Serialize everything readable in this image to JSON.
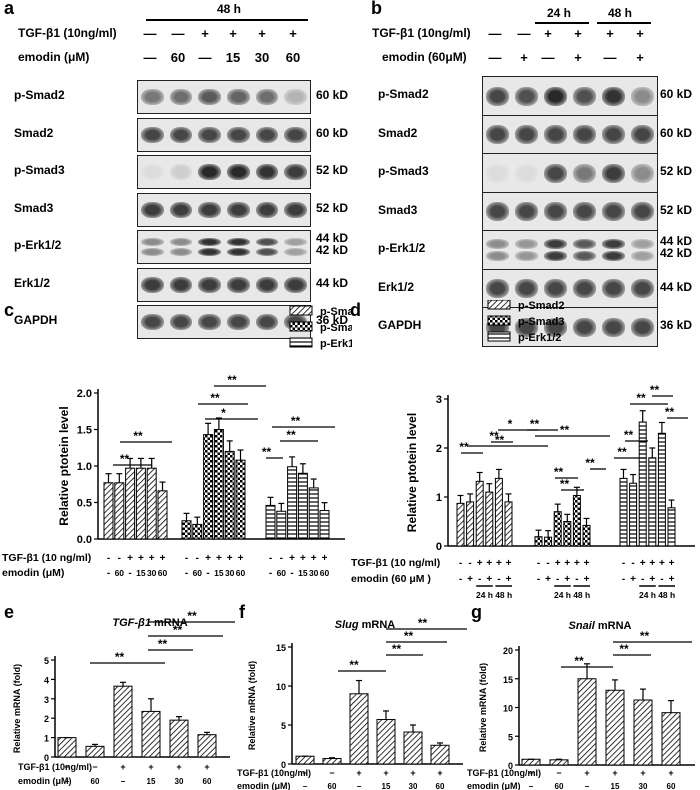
{
  "panel_a": {
    "letter": "a",
    "time": "48 h",
    "row_labels": [
      "TGF-β1 (10ng/ml)",
      "emodin (μM)"
    ],
    "tgf_signs": [
      "—",
      "—",
      "+",
      "+",
      "+",
      "+"
    ],
    "emodin_vals": [
      "—",
      "60",
      "—",
      "15",
      "30",
      "60"
    ],
    "blots": [
      {
        "label": "p-Smad2",
        "kd": "60 kD"
      },
      {
        "label": "Smad2",
        "kd": "60 kD"
      },
      {
        "label": "p-Smad3",
        "kd": "52 kD"
      },
      {
        "label": "Smad3",
        "kd": "52 kD"
      },
      {
        "label": "p-Erk1/2",
        "kd": "44 kD",
        "kd2": "42 kD"
      },
      {
        "label": "Erk1/2",
        "kd": "44 kD"
      },
      {
        "label": "GAPDH",
        "kd": "36 kD"
      }
    ]
  },
  "panel_b": {
    "letter": "b",
    "time1": "24 h",
    "time2": "48 h",
    "row_labels": [
      "TGF-β1 (10ng/ml)",
      "emodin (60μM)"
    ],
    "tgf_signs": [
      "—",
      "—",
      "+",
      "+",
      "+",
      "+"
    ],
    "emodin_signs": [
      "—",
      "+",
      "—",
      "+",
      "—",
      "+"
    ],
    "blots": [
      {
        "label": "p-Smad2",
        "kd": "60 kD"
      },
      {
        "label": "Smad2",
        "kd": "60 kD"
      },
      {
        "label": "p-Smad3",
        "kd": "52 kD"
      },
      {
        "label": "Smad3",
        "kd": "52 kD"
      },
      {
        "label": "p-Erk1/2",
        "kd": "44 kD",
        "kd2": "42 kD"
      },
      {
        "label": "Erk1/2",
        "kd": "44 kD"
      },
      {
        "label": "GAPDH",
        "kd": "36 kD"
      }
    ]
  },
  "chart_data": [
    {
      "id": "c",
      "type": "bar",
      "ylabel": "Relative ptotein level",
      "ylim": [
        0,
        2
      ],
      "yticks": [
        "0.0",
        "0.5",
        "1.0",
        "1.5",
        "2.0"
      ],
      "series": [
        {
          "name": "p-Smad2",
          "values": [
            0.77,
            0.77,
            0.97,
            0.97,
            0.97,
            0.66
          ]
        },
        {
          "name": "p-Smad3",
          "values": [
            0.25,
            0.2,
            1.43,
            1.5,
            1.2,
            1.08
          ]
        },
        {
          "name": "p-Erk1/2",
          "values": [
            0.46,
            0.38,
            0.99,
            0.9,
            0.7,
            0.39
          ]
        }
      ],
      "row1_label": "TGF-β1 (10 ng/ml)",
      "row2_label": "emodin (μM)",
      "tgf": [
        "-",
        "-",
        "+",
        "+",
        "+",
        "+"
      ],
      "emodin": [
        "-",
        "60",
        "-",
        "15",
        "30",
        "60"
      ],
      "sig": [
        "**",
        "**",
        "**",
        "*",
        "**",
        "**",
        "**",
        "**"
      ]
    },
    {
      "id": "d",
      "type": "bar",
      "ylabel": "Relative ptotein level",
      "ylim": [
        0,
        3
      ],
      "yticks": [
        "0",
        "1",
        "2",
        "3"
      ],
      "series": [
        {
          "name": "p-Smad2",
          "values": [
            0.87,
            0.9,
            1.32,
            1.1,
            1.38,
            0.9
          ]
        },
        {
          "name": "p-Smad3",
          "values": [
            0.19,
            0.18,
            0.7,
            0.5,
            1.03,
            0.42
          ]
        },
        {
          "name": "p-Erk1/2",
          "values": [
            1.38,
            1.28,
            2.53,
            1.8,
            2.3,
            0.78
          ]
        }
      ],
      "row1_label": "TGF-β1 (10 ng/ml)",
      "row2_label": "emodin (60 μM )",
      "tgf": [
        "-",
        "-",
        "+",
        "+",
        "+",
        "+"
      ],
      "emodin": [
        "-",
        "+",
        "-",
        "+",
        "-",
        "+"
      ],
      "time_labels": [
        "24 h",
        "48 h"
      ],
      "sig": [
        "**",
        "**",
        "**",
        "*",
        "**",
        "**",
        "**",
        "**",
        "**",
        "**",
        "**",
        "**",
        "**",
        "**"
      ]
    },
    {
      "id": "e",
      "type": "bar",
      "title": "TGF-β1",
      "title_suffix": " mRNA",
      "ylabel": "Relative mRNA (fold)",
      "ylim": [
        0,
        5
      ],
      "yticks": [
        "0",
        "1",
        "2",
        "3",
        "4",
        "5"
      ],
      "values": [
        1.0,
        0.55,
        3.65,
        2.35,
        1.9,
        1.15
      ],
      "row1_label": "TGF-β1 (10ng/ml)",
      "row2_label": "emodin (μM)",
      "tgf": [
        "−",
        "−",
        "+",
        "+",
        "+",
        "+"
      ],
      "emodin": [
        "−",
        "60",
        "−",
        "15",
        "30",
        "60"
      ],
      "sig": [
        "**",
        "**",
        "**",
        "**"
      ]
    },
    {
      "id": "f",
      "type": "bar",
      "title": "Slug",
      "title_suffix": " mRNA",
      "ylabel": "Relative mRNA (fold)",
      "ylim": [
        0,
        15
      ],
      "yticks": [
        "0",
        "5",
        "10",
        "15"
      ],
      "values": [
        1.0,
        0.7,
        9.0,
        5.7,
        4.1,
        2.4
      ],
      "row1_label": "TGF-β1 (10ng/ml)",
      "row2_label": "emodin (μM)",
      "tgf": [
        "−",
        "−",
        "+",
        "+",
        "+",
        "+"
      ],
      "emodin": [
        "−",
        "60",
        "−",
        "15",
        "30",
        "60"
      ],
      "sig": [
        "**",
        "**",
        "**",
        "**"
      ]
    },
    {
      "id": "g",
      "type": "bar",
      "title": "Snail",
      "title_suffix": " mRNA",
      "ylabel": "Relative mRNA (fold)",
      "ylim": [
        0,
        20
      ],
      "yticks": [
        "0",
        "5",
        "10",
        "15",
        "20"
      ],
      "values": [
        1.0,
        0.9,
        15.0,
        13.0,
        11.3,
        9.1
      ],
      "row1_label": "TGF-β1 (10ng/ml)",
      "row2_label": "emodin (μM)",
      "tgf": [
        "−",
        "−",
        "+",
        "+",
        "+",
        "+"
      ],
      "emodin": [
        "−",
        "60",
        "−",
        "15",
        "30",
        "60"
      ],
      "sig": [
        "**",
        "**",
        "**"
      ]
    }
  ]
}
